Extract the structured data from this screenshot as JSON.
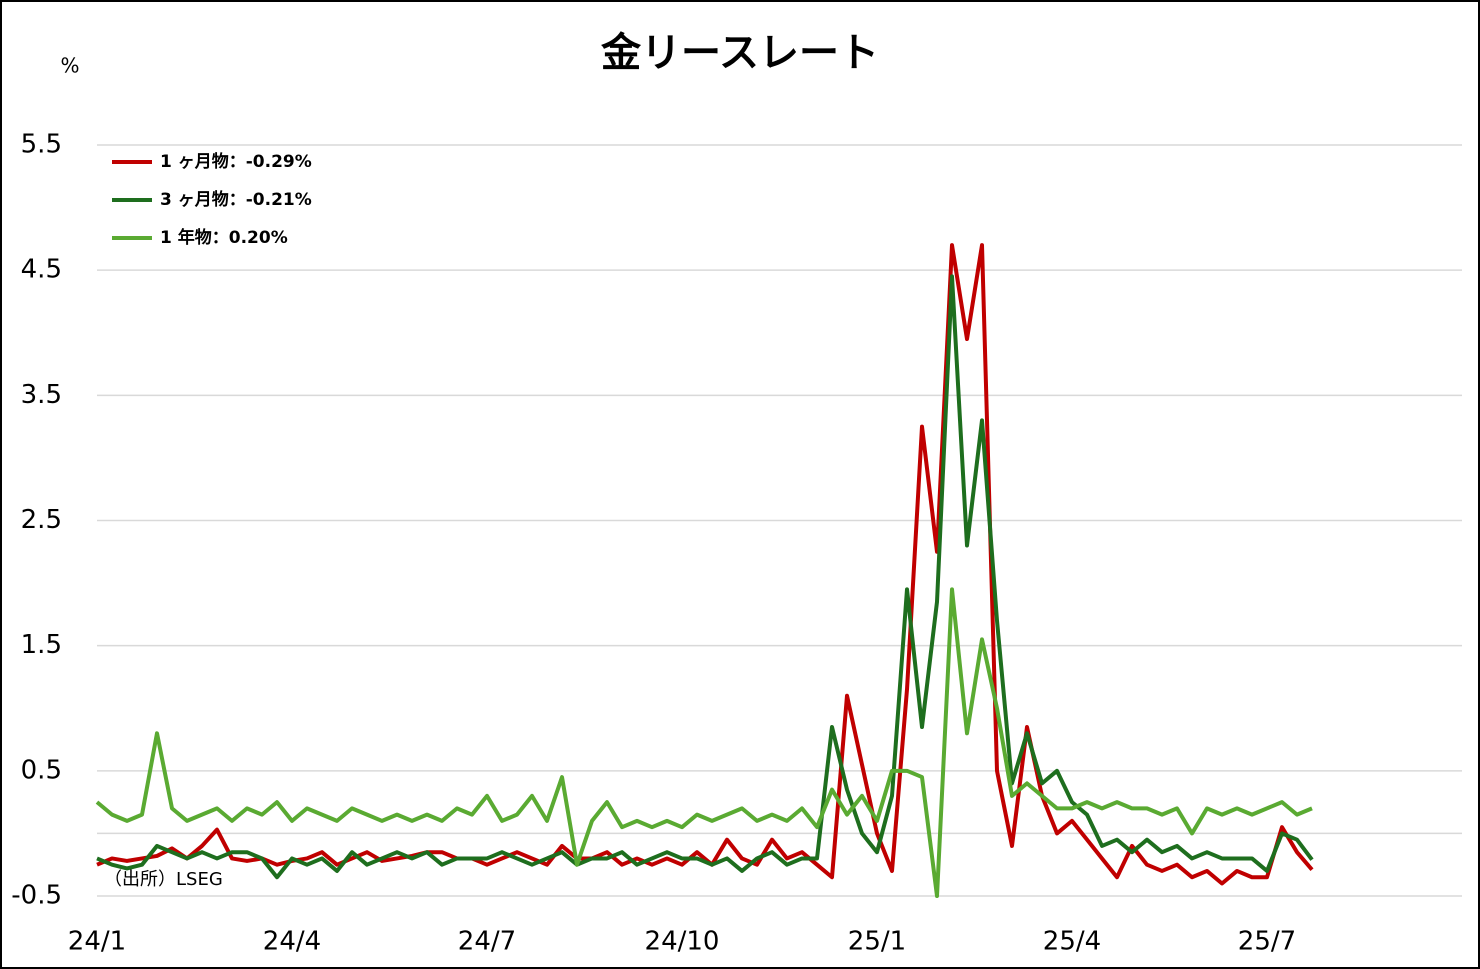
{
  "chart_data": {
    "type": "line",
    "title": "金リースレート",
    "y_unit": "%",
    "source": "（出所）LSEG",
    "categories": [
      "24/1",
      null,
      null,
      null,
      null,
      null,
      null,
      null,
      null,
      null,
      null,
      null,
      null,
      "24/4",
      null,
      null,
      null,
      null,
      null,
      null,
      null,
      null,
      null,
      null,
      null,
      null,
      "24/7",
      null,
      null,
      null,
      null,
      null,
      null,
      null,
      null,
      null,
      null,
      null,
      null,
      "24/10",
      null,
      null,
      null,
      null,
      null,
      null,
      null,
      null,
      null,
      null,
      null,
      null,
      "25/1",
      null,
      null,
      null,
      null,
      null,
      null,
      null,
      null,
      null,
      null,
      null,
      null,
      "25/4",
      null,
      null,
      null,
      null,
      null,
      null,
      null,
      null,
      null,
      null,
      null,
      null,
      "25/7",
      null,
      null,
      null
    ],
    "ylim": [
      -0.5,
      5.5
    ],
    "yticks": [
      -0.5,
      0.5,
      1.5,
      2.5,
      3.5,
      4.5,
      5.5
    ],
    "grid": true,
    "legend": "upper left",
    "series": [
      {
        "name": "1 ヶ月物：-0.29%",
        "color": "#c00000",
        "values": [
          -0.25,
          -0.2,
          -0.22,
          -0.2,
          -0.18,
          -0.12,
          -0.2,
          -0.1,
          0.03,
          -0.2,
          -0.22,
          -0.2,
          -0.25,
          -0.22,
          -0.2,
          -0.15,
          -0.25,
          -0.2,
          -0.15,
          -0.22,
          -0.2,
          -0.18,
          -0.15,
          -0.15,
          -0.2,
          -0.2,
          -0.25,
          -0.2,
          -0.15,
          -0.2,
          -0.25,
          -0.1,
          -0.2,
          -0.2,
          -0.15,
          -0.25,
          -0.2,
          -0.25,
          -0.2,
          -0.25,
          -0.15,
          -0.25,
          -0.05,
          -0.2,
          -0.25,
          -0.05,
          -0.2,
          -0.15,
          -0.25,
          -0.35,
          1.1,
          0.55,
          0.0,
          -0.3,
          1.15,
          3.25,
          2.25,
          4.7,
          3.95,
          4.7,
          0.5,
          -0.1,
          0.85,
          0.3,
          0.0,
          0.1,
          -0.05,
          -0.2,
          -0.35,
          -0.1,
          -0.25,
          -0.3,
          -0.25,
          -0.35,
          -0.3,
          -0.4,
          -0.3,
          -0.35,
          -0.35,
          0.05,
          -0.15,
          -0.29
        ]
      },
      {
        "name": "3 ヶ月物：-0.21%",
        "color": "#1e6e1e",
        "values": [
          -0.2,
          -0.25,
          -0.28,
          -0.25,
          -0.1,
          -0.15,
          -0.2,
          -0.15,
          -0.2,
          -0.15,
          -0.15,
          -0.2,
          -0.35,
          -0.2,
          -0.25,
          -0.2,
          -0.3,
          -0.15,
          -0.25,
          -0.2,
          -0.15,
          -0.2,
          -0.15,
          -0.25,
          -0.2,
          -0.2,
          -0.2,
          -0.15,
          -0.2,
          -0.25,
          -0.2,
          -0.15,
          -0.25,
          -0.2,
          -0.2,
          -0.15,
          -0.25,
          -0.2,
          -0.15,
          -0.2,
          -0.2,
          -0.25,
          -0.2,
          -0.3,
          -0.2,
          -0.15,
          -0.25,
          -0.2,
          -0.2,
          0.85,
          0.35,
          0.0,
          -0.15,
          0.3,
          1.95,
          0.85,
          1.85,
          4.45,
          2.3,
          3.3,
          1.7,
          0.4,
          0.8,
          0.4,
          0.5,
          0.25,
          0.15,
          -0.1,
          -0.05,
          -0.15,
          -0.05,
          -0.15,
          -0.1,
          -0.2,
          -0.15,
          -0.2,
          -0.2,
          -0.2,
          -0.3,
          0.0,
          -0.05,
          -0.21
        ]
      },
      {
        "name": "1 年物：0.20%",
        "color": "#5aaa32",
        "values": [
          0.25,
          0.15,
          0.1,
          0.15,
          0.8,
          0.2,
          0.1,
          0.15,
          0.2,
          0.1,
          0.2,
          0.15,
          0.25,
          0.1,
          0.2,
          0.15,
          0.1,
          0.2,
          0.15,
          0.1,
          0.15,
          0.1,
          0.15,
          0.1,
          0.2,
          0.15,
          0.3,
          0.1,
          0.15,
          0.3,
          0.1,
          0.45,
          -0.25,
          0.1,
          0.25,
          0.05,
          0.1,
          0.05,
          0.1,
          0.05,
          0.15,
          0.1,
          0.15,
          0.2,
          0.1,
          0.15,
          0.1,
          0.2,
          0.05,
          0.35,
          0.15,
          0.3,
          0.1,
          0.5,
          0.5,
          0.45,
          -0.5,
          1.95,
          0.8,
          1.55,
          1.0,
          0.3,
          0.4,
          0.3,
          0.2,
          0.2,
          0.25,
          0.2,
          0.25,
          0.2,
          0.2,
          0.15,
          0.2,
          0.0,
          0.2,
          0.15,
          0.2,
          0.15,
          0.2,
          0.25,
          0.15,
          0.2
        ]
      }
    ]
  }
}
